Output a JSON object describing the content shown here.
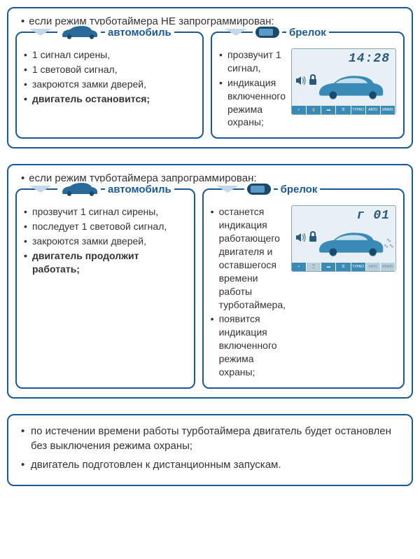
{
  "colors": {
    "border": "#1a5a93",
    "label_text": "#1a5a93",
    "chevron": "#c5d8e8",
    "lcd_bg": "#e8f0f5",
    "lcd_fg": "#2a5a7a",
    "tag_on_bg": "#3a8ab8",
    "tag_off_bg": "#b8d0dd",
    "car_fill": "#3a8ab8"
  },
  "panel1": {
    "header": "если режим турботаймера НЕ запрограммирован:",
    "left": {
      "label": "автомобиль",
      "items": [
        {
          "text": "1 сигнал сирены,",
          "bold": false
        },
        {
          "text": "1 световой сигнал,",
          "bold": false
        },
        {
          "text": "закроются замки дверей,",
          "bold": false
        },
        {
          "text": "двигатель остановится;",
          "bold": true
        }
      ]
    },
    "right": {
      "label": "брелок",
      "items": [
        {
          "text": "прозвучит 1 сигнал,",
          "bold": false
        },
        {
          "text": "индикация включенного режима охраны;",
          "bold": false
        }
      ],
      "lcd": {
        "time": "14:28",
        "tags": [
          {
            "t": "✓",
            "on": true
          },
          {
            "t": "⌛",
            "on": true
          },
          {
            "t": "▬",
            "on": true
          },
          {
            "t": "⚿",
            "on": true
          },
          {
            "t": "ТУРБО",
            "on": true
          },
          {
            "t": "АВТО",
            "on": true
          },
          {
            "t": "ИММО",
            "on": true
          }
        ],
        "smoke": false
      }
    }
  },
  "panel2": {
    "header": "если режим турботаймера запрограммирован:",
    "left": {
      "label": "автомобиль",
      "items": [
        {
          "text": "прозвучит 1 сигнал сирены,",
          "bold": false
        },
        {
          "text": "последует 1 световой сигнал,",
          "bold": false
        },
        {
          "text": "закроются замки дверей,",
          "bold": false
        },
        {
          "text": "двигатель продолжит работать;",
          "bold": true
        }
      ]
    },
    "right": {
      "label": "брелок",
      "items": [
        {
          "text": "останется индикация работающего двигателя и оставшегося времени работы турботаймера,",
          "bold": false
        },
        {
          "text": "появится индикация включенного режима охраны;",
          "bold": false
        }
      ],
      "lcd": {
        "time": "г 01",
        "tags": [
          {
            "t": "✓",
            "on": true
          },
          {
            "t": "⌛",
            "on": false
          },
          {
            "t": "▬",
            "on": true
          },
          {
            "t": "⚿",
            "on": true
          },
          {
            "t": "ТУРБО",
            "on": true
          },
          {
            "t": "АВТО",
            "on": false
          },
          {
            "t": "ИММО",
            "on": false
          }
        ],
        "smoke": true
      }
    }
  },
  "footer": {
    "items": [
      "по истечении времени работы турботаймера двигатель будет остановлен без выключения режима охраны;",
      "двигатель подготовлен к дистанционным запускам."
    ]
  }
}
